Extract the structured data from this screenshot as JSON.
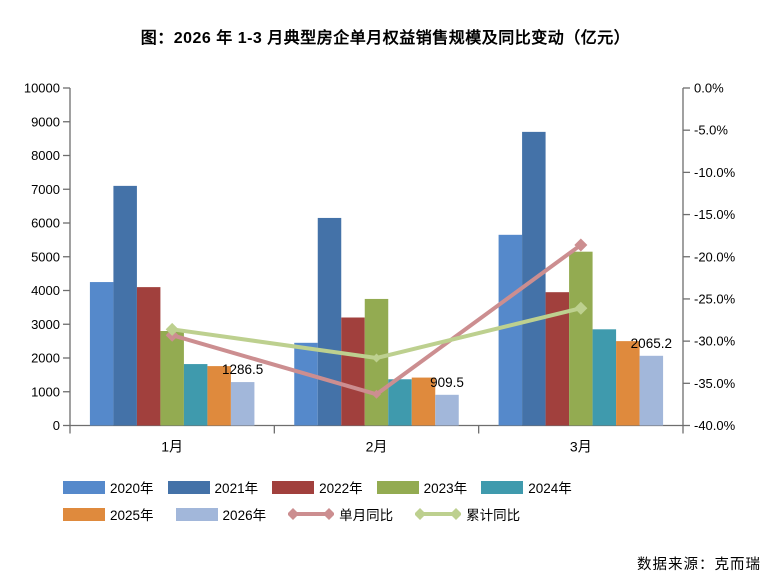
{
  "title": "图：2026 年 1-3 月典型房企单月权益销售规模及同比变动（亿元）",
  "source": "数据来源：克而瑞",
  "chart_data": {
    "type": "bar",
    "subtype": "grouped-bars-with-lines",
    "title": "图：2026 年 1-3 月典型房企单月权益销售规模及同比变动（亿元）",
    "categories": [
      "1月",
      "2月",
      "3月"
    ],
    "bar_series": [
      {
        "name": "2020年",
        "color": "#5589cb",
        "values": [
          4250,
          2450,
          5650
        ]
      },
      {
        "name": "2021年",
        "color": "#4472a8",
        "values": [
          7100,
          6150,
          8700
        ]
      },
      {
        "name": "2022年",
        "color": "#a1403d",
        "values": [
          4100,
          3200,
          3950
        ]
      },
      {
        "name": "2023年",
        "color": "#93ab51",
        "values": [
          2800,
          3750,
          5150
        ]
      },
      {
        "name": "2024年",
        "color": "#3f9aad",
        "values": [
          1820,
          1370,
          2850
        ]
      },
      {
        "name": "2025年",
        "color": "#df8a3d",
        "values": [
          1760,
          1420,
          2500
        ]
      },
      {
        "name": "2026年",
        "color": "#a2b7da",
        "values": [
          1286.5,
          909.5,
          2065.2
        ],
        "data_labels": [
          "1286.5",
          "909.5",
          "2065.2"
        ]
      }
    ],
    "line_series": [
      {
        "name": "单月同比",
        "color": "#cc8e90",
        "values": [
          -29.3,
          -36.3,
          -18.6
        ]
      },
      {
        "name": "累计同比",
        "color": "#bdd08f",
        "values": [
          -28.6,
          -32.0,
          -26.1
        ]
      }
    ],
    "left_axis": {
      "min": 0,
      "max": 10000,
      "step": 1000,
      "tick_labels": [
        "0",
        "1000",
        "2000",
        "3000",
        "4000",
        "5000",
        "6000",
        "7000",
        "8000",
        "9000",
        "10000"
      ]
    },
    "right_axis": {
      "min": -40,
      "max": 0,
      "step": 5,
      "tick_labels": [
        "0.0%",
        "-5.0%",
        "-10.0%",
        "-15.0%",
        "-20.0%",
        "-25.0%",
        "-30.0%",
        "-35.0%",
        "-40.0%"
      ]
    },
    "grid": false,
    "legend_position": "bottom"
  }
}
